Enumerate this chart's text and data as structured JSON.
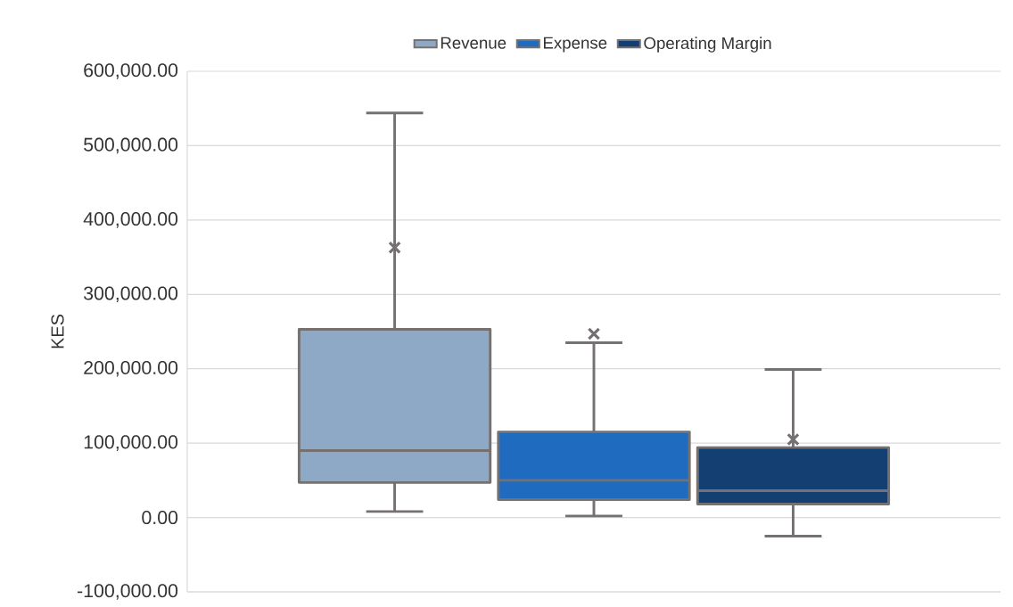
{
  "chart_data": {
    "type": "box",
    "ylabel": "KES",
    "categories": [
      null
    ],
    "series": [
      {
        "name": "Revenue",
        "color": "#8ea9c6",
        "boxes": [
          {
            "low": 8000,
            "q1": 47000,
            "median": 90000,
            "q3": 253000,
            "high": 544000,
            "mean": 363000
          }
        ]
      },
      {
        "name": "Expense",
        "color": "#1f6bc0",
        "boxes": [
          {
            "low": 2000,
            "q1": 24000,
            "median": 50000,
            "q3": 115000,
            "high": 235000,
            "mean": 247000
          }
        ]
      },
      {
        "name": "Operating Margin",
        "color": "#133f73",
        "boxes": [
          {
            "low": -25000,
            "q1": 18000,
            "median": 36000,
            "q3": 94000,
            "high": 199000,
            "mean": 105000
          }
        ]
      }
    ],
    "ylim": [
      -100000,
      600000
    ],
    "yticks": [
      {
        "value": -100000,
        "label": "-100,000.00"
      },
      {
        "value": 0,
        "label": "0.00"
      },
      {
        "value": 100000,
        "label": "100,000.00"
      },
      {
        "value": 200000,
        "label": "200,000.00"
      },
      {
        "value": 300000,
        "label": "300,000.00"
      },
      {
        "value": 400000,
        "label": "400,000.00"
      },
      {
        "value": 500000,
        "label": "500,000.00"
      },
      {
        "value": 600000,
        "label": "600,000.00"
      }
    ],
    "grid": "y",
    "legend": "top"
  }
}
